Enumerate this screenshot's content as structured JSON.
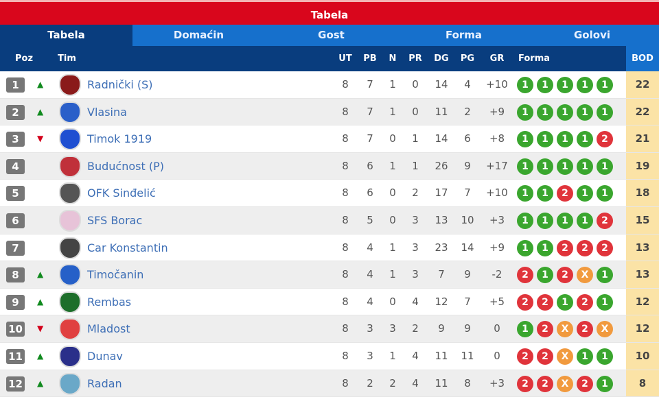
{
  "title": "Tabela",
  "tabs": [
    "Tabela",
    "Domaćin",
    "Gost",
    "Forma",
    "Golovi"
  ],
  "columns": {
    "poz": "Poz",
    "tim": "Tim",
    "ut": "UT",
    "pb": "PB",
    "n": "N",
    "pr": "PR",
    "dg": "DG",
    "pg": "PG",
    "gr": "GR",
    "forma": "Forma",
    "bod": "BOD"
  },
  "colors": {
    "win": "#3aa62e",
    "loss": "#e0343b",
    "draw": "#f19a3e",
    "header_red": "#d9061c",
    "navy": "#093d7e",
    "blue": "#1670cc",
    "points_bg": "#fbe3a6"
  },
  "rows": [
    {
      "poz": "1",
      "trend": "up",
      "tim": "Radnički (S)",
      "logo": "#8a1a1a",
      "ut": "8",
      "pb": "7",
      "n": "1",
      "pr": "0",
      "dg": "14",
      "pg": "4",
      "gr": "+10",
      "forma": [
        "1",
        "1",
        "1",
        "1",
        "1"
      ],
      "bod": "22"
    },
    {
      "poz": "2",
      "trend": "up",
      "tim": "Vlasina",
      "logo": "#2a5fc9",
      "ut": "8",
      "pb": "7",
      "n": "1",
      "pr": "0",
      "dg": "11",
      "pg": "2",
      "gr": "+9",
      "forma": [
        "1",
        "1",
        "1",
        "1",
        "1"
      ],
      "bod": "22"
    },
    {
      "poz": "3",
      "trend": "down",
      "tim": "Timok 1919",
      "logo": "#1f4fd1",
      "ut": "8",
      "pb": "7",
      "n": "0",
      "pr": "1",
      "dg": "14",
      "pg": "6",
      "gr": "+8",
      "forma": [
        "1",
        "1",
        "1",
        "1",
        "2"
      ],
      "bod": "21"
    },
    {
      "poz": "4",
      "trend": "",
      "tim": "Budućnost (P)",
      "logo": "#c0303a",
      "ut": "8",
      "pb": "6",
      "n": "1",
      "pr": "1",
      "dg": "26",
      "pg": "9",
      "gr": "+17",
      "forma": [
        "1",
        "1",
        "1",
        "1",
        "1"
      ],
      "bod": "19"
    },
    {
      "poz": "5",
      "trend": "",
      "tim": "OFK Sinđelić",
      "logo": "#555555",
      "ut": "8",
      "pb": "6",
      "n": "0",
      "pr": "2",
      "dg": "17",
      "pg": "7",
      "gr": "+10",
      "forma": [
        "1",
        "1",
        "2",
        "1",
        "1"
      ],
      "bod": "18"
    },
    {
      "poz": "6",
      "trend": "",
      "tim": "SFS Borac",
      "logo": "#e7c3d8",
      "ut": "8",
      "pb": "5",
      "n": "0",
      "pr": "3",
      "dg": "13",
      "pg": "10",
      "gr": "+3",
      "forma": [
        "1",
        "1",
        "1",
        "1",
        "2"
      ],
      "bod": "15"
    },
    {
      "poz": "7",
      "trend": "",
      "tim": "Car Konstantin",
      "logo": "#444444",
      "ut": "8",
      "pb": "4",
      "n": "1",
      "pr": "3",
      "dg": "23",
      "pg": "14",
      "gr": "+9",
      "forma": [
        "1",
        "1",
        "2",
        "2",
        "2"
      ],
      "bod": "13"
    },
    {
      "poz": "8",
      "trend": "up",
      "tim": "Timočanin",
      "logo": "#2660c8",
      "ut": "8",
      "pb": "4",
      "n": "1",
      "pr": "3",
      "dg": "7",
      "pg": "9",
      "gr": "-2",
      "forma": [
        "2",
        "1",
        "2",
        "X",
        "1"
      ],
      "bod": "13"
    },
    {
      "poz": "9",
      "trend": "up",
      "tim": "Rembas",
      "logo": "#1d6e2a",
      "ut": "8",
      "pb": "4",
      "n": "0",
      "pr": "4",
      "dg": "12",
      "pg": "7",
      "gr": "+5",
      "forma": [
        "2",
        "2",
        "1",
        "2",
        "1"
      ],
      "bod": "12"
    },
    {
      "poz": "10",
      "trend": "down",
      "tim": "Mladost",
      "logo": "#e04040",
      "ut": "8",
      "pb": "3",
      "n": "3",
      "pr": "2",
      "dg": "9",
      "pg": "9",
      "gr": "0",
      "forma": [
        "1",
        "2",
        "X",
        "2",
        "X"
      ],
      "bod": "12"
    },
    {
      "poz": "11",
      "trend": "up",
      "tim": "Dunav",
      "logo": "#2a2f8a",
      "ut": "8",
      "pb": "3",
      "n": "1",
      "pr": "4",
      "dg": "11",
      "pg": "11",
      "gr": "0",
      "forma": [
        "2",
        "2",
        "X",
        "1",
        "1"
      ],
      "bod": "10"
    },
    {
      "poz": "12",
      "trend": "up",
      "tim": "Radan",
      "logo": "#6aa8c8",
      "ut": "8",
      "pb": "2",
      "n": "2",
      "pr": "4",
      "dg": "11",
      "pg": "8",
      "gr": "+3",
      "forma": [
        "2",
        "2",
        "X",
        "2",
        "1"
      ],
      "bod": "8"
    }
  ]
}
